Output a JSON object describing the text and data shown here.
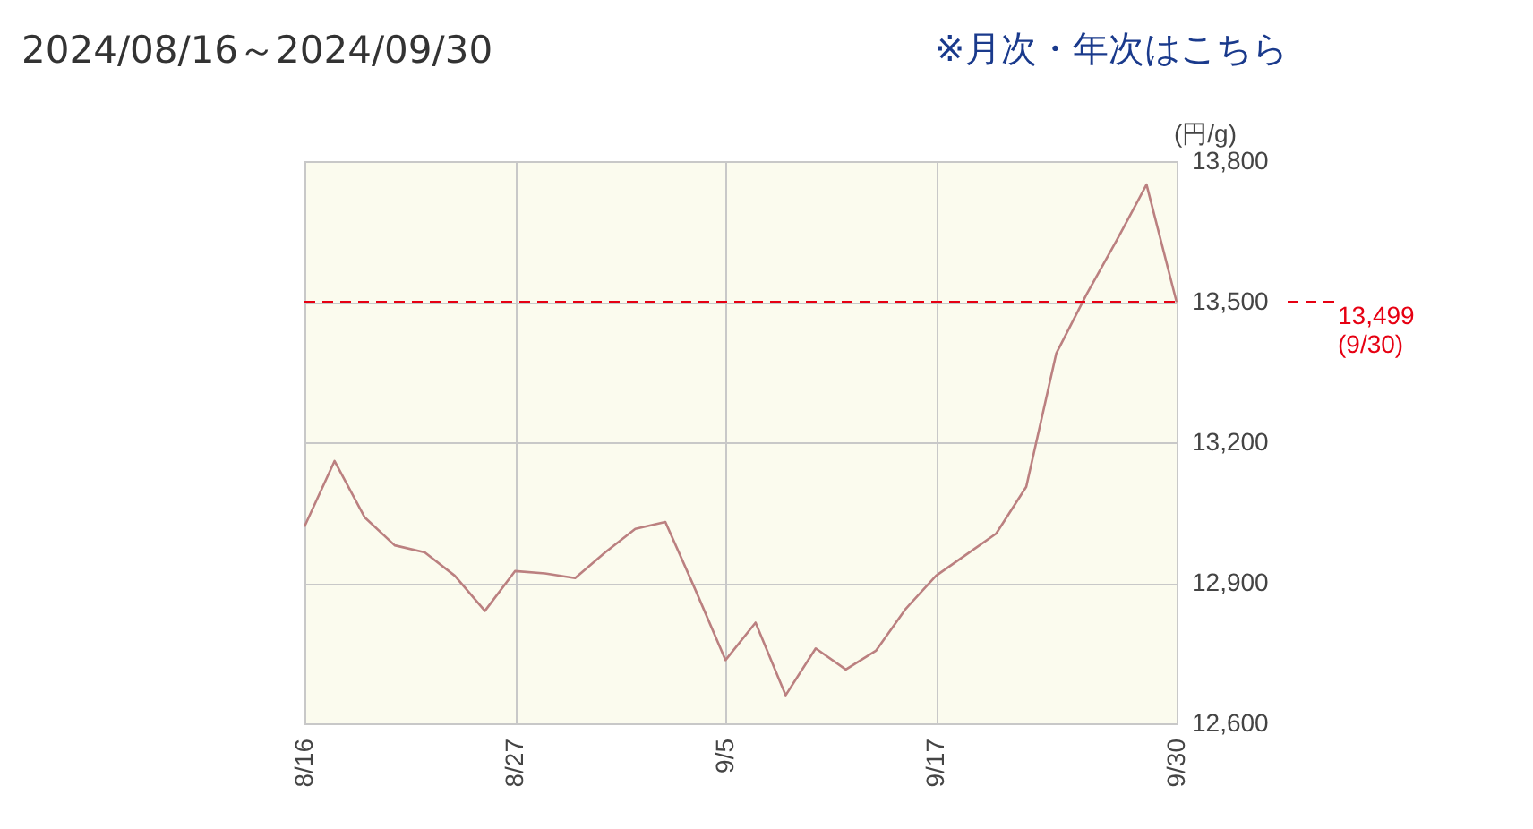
{
  "chart_data": {
    "type": "line",
    "title": "2024/08/16～2024/09/30",
    "ylabel": "(円/g)",
    "annotations": [
      "※月次・年次はこちら"
    ],
    "categories": [
      "8/16",
      null,
      null,
      null,
      null,
      null,
      null,
      "8/27",
      null,
      null,
      null,
      null,
      null,
      null,
      "9/5",
      null,
      null,
      null,
      null,
      null,
      null,
      "9/17",
      null,
      null,
      null,
      null,
      null,
      null,
      null,
      "9/30"
    ],
    "series": [
      {
        "color": "#bb8080",
        "values": [
          13020,
          13160,
          13040,
          12980,
          12965,
          12915,
          12840,
          12925,
          12920,
          12910,
          12965,
          13015,
          13030,
          12885,
          12735,
          12815,
          12660,
          12760,
          12715,
          12755,
          12845,
          12915,
          12960,
          13005,
          13105,
          13390,
          13515,
          13630,
          13750,
          13499
        ]
      }
    ],
    "ylim": [
      12600,
      13800
    ],
    "yticks": [
      {
        "value": 12600,
        "label": "12,600"
      },
      {
        "value": 12900,
        "label": "12,900"
      },
      {
        "value": 13200,
        "label": "13,200"
      },
      {
        "value": 13500,
        "label": "13,500"
      },
      {
        "value": 13800,
        "label": "13,800"
      }
    ],
    "grid": true,
    "marker": "none",
    "line_style": "solid",
    "ref_lines": [
      {
        "axis": "y",
        "value": 13499,
        "label": "13,499\n(9/30)",
        "color": "#e60012",
        "line_style": "dashed"
      }
    ]
  }
}
